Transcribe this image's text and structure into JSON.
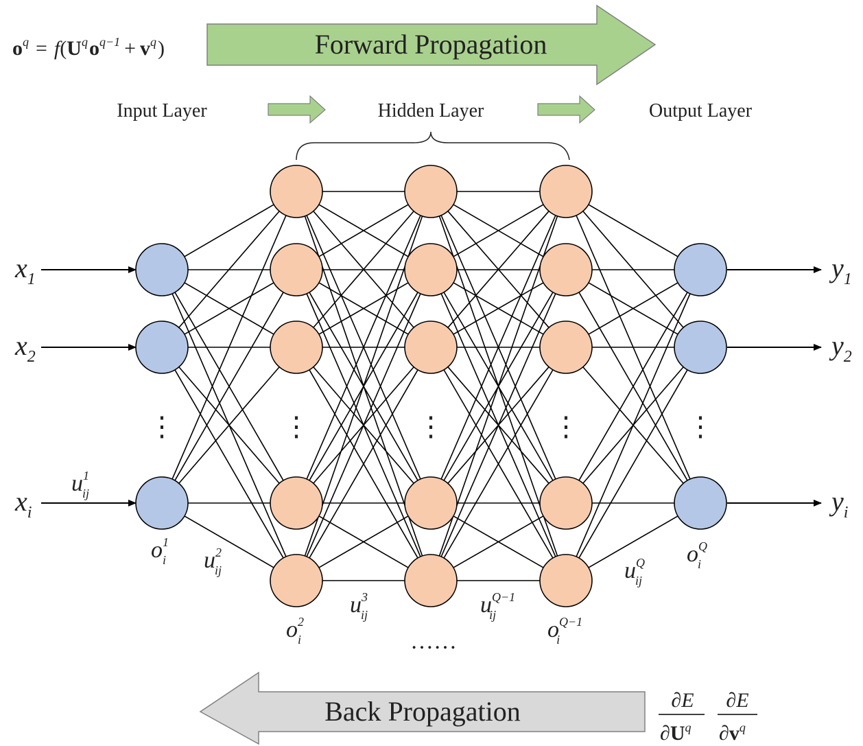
{
  "colors": {
    "forward_arrow": "#a9d18e",
    "back_arrow": "#d9d9d9",
    "arrow_stroke": "#808080",
    "input_node": "#b4c7e7",
    "hidden_node": "#f8cbad",
    "output_node": "#b4c7e7",
    "line": "#000000"
  },
  "forward": {
    "label": "Forward Propagation",
    "formula": {
      "o": "o",
      "q": "q",
      "eq": "=",
      "f": "f",
      "lp": "(",
      "U": "U",
      "qm1": "q−1",
      "plus": "+",
      "v": "v",
      "rp": ")"
    }
  },
  "layers": {
    "input": "Input Layer",
    "hidden": "Hidden Layer",
    "output": "Output Layer"
  },
  "vdots": "⋮",
  "hidden_dots": "……",
  "inputs": [
    {
      "sym": "x",
      "sub": "1"
    },
    {
      "sym": "x",
      "sub": "2"
    },
    {
      "sym": "x",
      "sub": "i"
    }
  ],
  "outputs": [
    {
      "sym": "y",
      "sub": "1"
    },
    {
      "sym": "y",
      "sub": "2"
    },
    {
      "sym": "y",
      "sub": "i"
    }
  ],
  "weights": {
    "u1": {
      "base": "u",
      "sup": "1",
      "sub": "ij"
    },
    "u2": {
      "base": "u",
      "sup": "2",
      "sub": "ij"
    },
    "u3": {
      "base": "u",
      "sup": "3",
      "sub": "ij"
    },
    "uQm1": {
      "base": "u",
      "sup": "Q−1",
      "sub": "ij"
    },
    "uQ": {
      "base": "u",
      "sup": "Q",
      "sub": "ij"
    }
  },
  "outputs_o": {
    "o1": {
      "base": "o",
      "sup": "1",
      "sub": "i"
    },
    "o2": {
      "base": "o",
      "sup": "2",
      "sub": "i"
    },
    "oQm1": {
      "base": "o",
      "sup": "Q−1",
      "sub": "i"
    },
    "oQ": {
      "base": "o",
      "sup": "Q",
      "sub": "i"
    }
  },
  "back": {
    "label": "Back Propagation",
    "grad1": {
      "num": "∂E",
      "den_d": "∂",
      "den_U": "U",
      "den_sup": "q"
    },
    "grad2": {
      "num": "∂E",
      "den_d": "∂",
      "den_v": "v",
      "den_sup": "q"
    }
  }
}
